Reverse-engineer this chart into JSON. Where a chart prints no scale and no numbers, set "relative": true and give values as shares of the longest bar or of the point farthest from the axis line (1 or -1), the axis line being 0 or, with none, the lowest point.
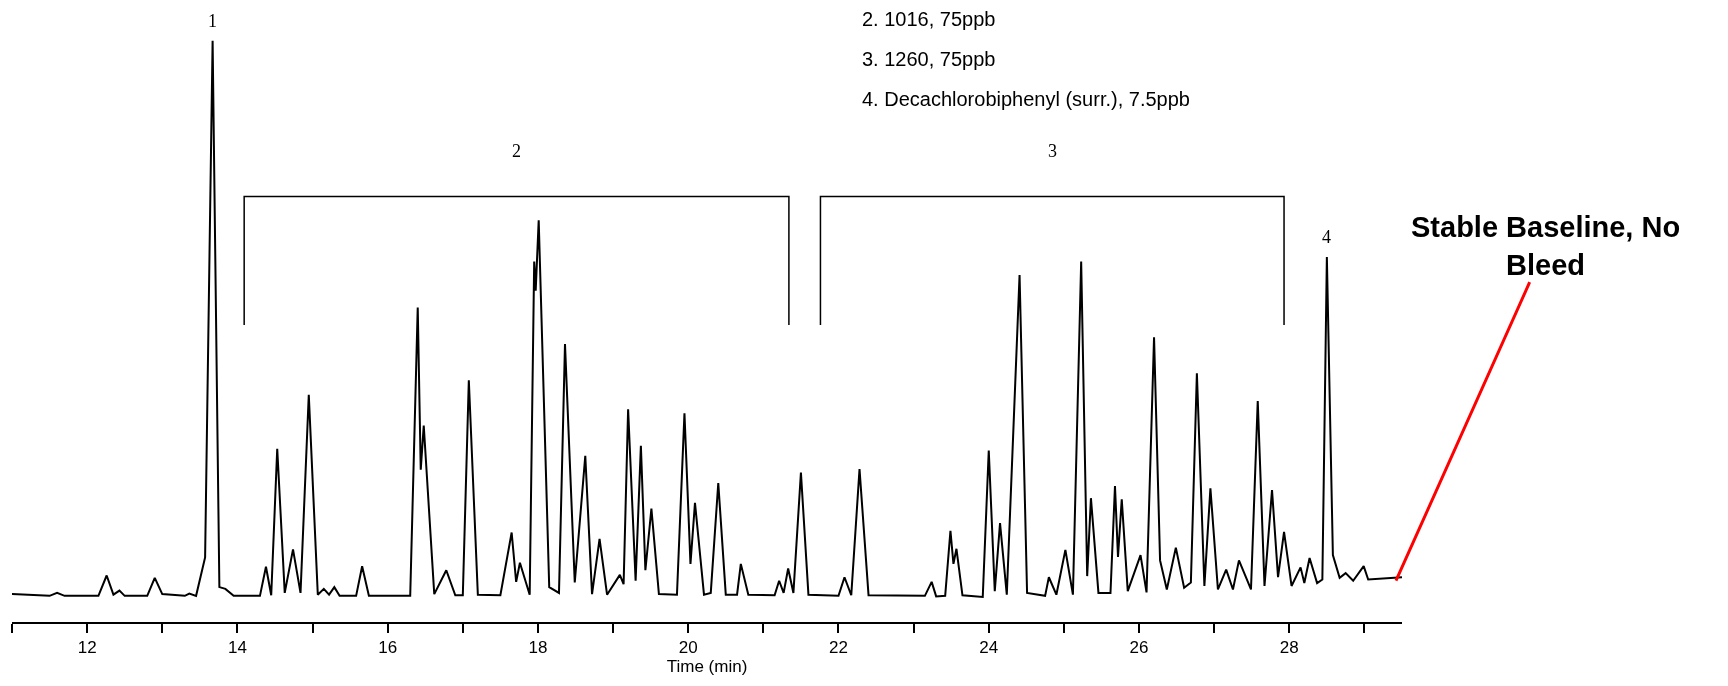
{
  "chart_data": {
    "type": "line",
    "relative": true,
    "xlabel": "Time (min)",
    "xlim": [
      11,
      29.5
    ],
    "xticks": [
      {
        "value": 11,
        "label": null
      },
      12,
      {
        "value": 13,
        "label": null
      },
      14,
      {
        "value": 15,
        "label": null
      },
      16,
      {
        "value": 17,
        "label": null
      },
      18,
      {
        "value": 19,
        "label": null
      },
      20,
      {
        "value": 21,
        "label": null
      },
      22,
      {
        "value": 23,
        "label": null
      },
      24,
      {
        "value": 25,
        "label": null
      },
      26,
      {
        "value": 27,
        "label": null
      },
      28,
      {
        "value": 29,
        "label": null
      }
    ],
    "x": [
      11.0,
      11.5,
      11.6,
      11.7,
      12.15,
      12.26,
      12.35,
      12.43,
      12.5,
      12.8,
      12.9,
      13.0,
      13.3,
      13.36,
      13.45,
      13.57,
      13.67,
      13.76,
      13.84,
      13.95,
      14.3,
      14.38,
      14.45,
      14.53,
      14.63,
      14.74,
      14.84,
      14.95,
      15.07,
      15.15,
      15.22,
      15.29,
      15.36,
      15.58,
      15.66,
      15.75,
      16.05,
      16.3,
      16.4,
      16.44,
      16.48,
      16.62,
      16.78,
      16.9,
      17.0,
      17.08,
      17.2,
      17.5,
      17.65,
      17.71,
      17.76,
      17.89,
      17.95,
      17.97,
      18.01,
      18.15,
      18.28,
      18.36,
      18.49,
      18.63,
      18.72,
      18.82,
      18.92,
      19.09,
      19.14,
      19.2,
      19.3,
      19.37,
      19.43,
      19.51,
      19.61,
      19.85,
      19.95,
      20.03,
      20.09,
      20.21,
      20.3,
      20.4,
      20.5,
      20.65,
      20.7,
      20.8,
      21.15,
      21.21,
      21.27,
      21.33,
      21.4,
      21.5,
      21.6,
      22.0,
      22.08,
      22.17,
      22.28,
      22.4,
      23.15,
      23.24,
      23.3,
      23.42,
      23.49,
      23.53,
      23.57,
      23.65,
      23.92,
      24.0,
      24.08,
      24.15,
      24.24,
      24.41,
      24.51,
      24.75,
      24.8,
      24.9,
      25.02,
      25.12,
      25.23,
      25.31,
      25.36,
      25.46,
      25.62,
      25.68,
      25.72,
      25.77,
      25.85,
      26.02,
      26.1,
      26.2,
      26.28,
      26.37,
      26.49,
      26.6,
      26.69,
      26.77,
      26.87,
      26.95,
      27.05,
      27.16,
      27.25,
      27.33,
      27.49,
      27.58,
      27.67,
      27.77,
      27.85,
      27.93,
      28.03,
      28.15,
      28.2,
      28.27,
      28.37,
      28.44,
      28.5,
      28.58,
      28.67,
      28.75,
      28.85,
      28.99,
      29.05,
      29.5
    ],
    "series": [
      {
        "color": "#000000",
        "values": [
          0.048,
          0.045,
          0.05,
          0.045,
          0.045,
          0.08,
          0.047,
          0.054,
          0.045,
          0.045,
          0.076,
          0.048,
          0.045,
          0.049,
          0.045,
          0.111,
          1.0,
          0.06,
          0.057,
          0.045,
          0.045,
          0.095,
          0.046,
          0.298,
          0.05,
          0.125,
          0.05,
          0.391,
          0.047,
          0.057,
          0.047,
          0.06,
          0.045,
          0.045,
          0.096,
          0.045,
          0.045,
          0.045,
          0.541,
          0.262,
          0.338,
          0.048,
          0.089,
          0.046,
          0.046,
          0.416,
          0.047,
          0.046,
          0.154,
          0.069,
          0.102,
          0.047,
          0.62,
          0.57,
          0.691,
          0.06,
          0.05,
          0.478,
          0.068,
          0.286,
          0.048,
          0.143,
          0.047,
          0.081,
          0.065,
          0.366,
          0.071,
          0.303,
          0.089,
          0.195,
          0.048,
          0.047,
          0.359,
          0.1,
          0.205,
          0.047,
          0.05,
          0.239,
          0.047,
          0.047,
          0.1,
          0.047,
          0.046,
          0.071,
          0.05,
          0.092,
          0.05,
          0.257,
          0.047,
          0.045,
          0.077,
          0.046,
          0.263,
          0.046,
          0.045,
          0.069,
          0.044,
          0.045,
          0.157,
          0.1,
          0.126,
          0.046,
          0.043,
          0.295,
          0.053,
          0.17,
          0.047,
          0.597,
          0.05,
          0.045,
          0.077,
          0.047,
          0.124,
          0.047,
          0.62,
          0.079,
          0.213,
          0.05,
          0.05,
          0.234,
          0.112,
          0.211,
          0.053,
          0.115,
          0.051,
          0.49,
          0.106,
          0.056,
          0.128,
          0.059,
          0.068,
          0.428,
          0.062,
          0.23,
          0.056,
          0.09,
          0.056,
          0.106,
          0.056,
          0.38,
          0.062,
          0.227,
          0.077,
          0.155,
          0.062,
          0.094,
          0.067,
          0.11,
          0.067,
          0.073,
          0.628,
          0.115,
          0.076,
          0.084,
          0.071,
          0.096,
          0.073,
          0.077
        ]
      }
    ],
    "annotations": [
      {
        "text": "1",
        "x": 13.67,
        "y": 1.0
      },
      {
        "text": "4",
        "x": 28.5,
        "y": 0.628
      },
      "2",
      "3",
      {
        "text": "Stable Baseline, No Bleed",
        "x": 29.42,
        "y": 0.071
      },
      "2. 1016, 75ppb",
      "3. 1260, 75ppb",
      "4. Decachlorobiphenyl (surr.), 7.5ppb"
    ],
    "marker": "none",
    "line_style": "solid"
  }
}
